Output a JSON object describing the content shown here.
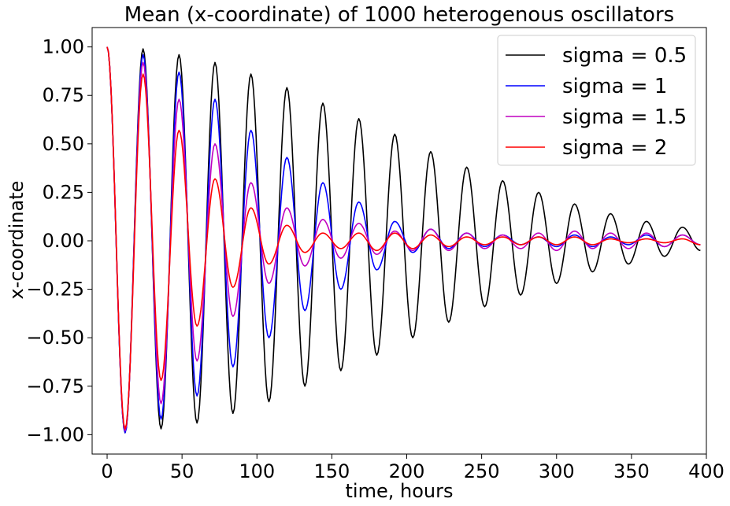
{
  "chart_data": {
    "type": "line",
    "title": "Mean (x-coordinate) of 1000 heterogenous oscillators",
    "xlabel": "time, hours",
    "ylabel": "x-coordinate",
    "xlim": [
      -10,
      400
    ],
    "ylim": [
      -1.1,
      1.1
    ],
    "xticks": [
      0,
      50,
      100,
      150,
      200,
      250,
      300,
      350,
      400
    ],
    "xtick_labels": [
      "0",
      "50",
      "100",
      "150",
      "200",
      "250",
      "300",
      "350",
      "400"
    ],
    "yticks": [
      1.0,
      0.75,
      0.5,
      0.25,
      0.0,
      -0.25,
      -0.5,
      -0.75,
      -1.0
    ],
    "ytick_labels": [
      "1.00",
      "0.75",
      "0.50",
      "0.25",
      "0.00",
      "−0.25",
      "−0.50",
      "−0.75",
      "−1.00"
    ],
    "grid": false,
    "legend_position": "top-right",
    "series": [
      {
        "name": "sigma = 0.5",
        "color": "#000000",
        "x": [
          0,
          12,
          24,
          36,
          48,
          60,
          72,
          84,
          96,
          108,
          120,
          132,
          144,
          156,
          168,
          180,
          192,
          204,
          216,
          228,
          240,
          252,
          264,
          276,
          288,
          300,
          312,
          324,
          336,
          348,
          360,
          372,
          384,
          396
        ],
        "y": [
          1.0,
          -0.99,
          0.99,
          -0.97,
          0.96,
          -0.94,
          0.92,
          -0.89,
          0.86,
          -0.83,
          0.79,
          -0.75,
          0.71,
          -0.67,
          0.63,
          -0.59,
          0.55,
          -0.5,
          0.46,
          -0.42,
          0.38,
          -0.34,
          0.31,
          -0.28,
          0.25,
          -0.22,
          0.19,
          -0.16,
          0.14,
          -0.12,
          0.1,
          -0.08,
          0.07,
          -0.05
        ]
      },
      {
        "name": "sigma = 1",
        "color": "#0000ff",
        "x": [
          0,
          12,
          24,
          36,
          48,
          60,
          72,
          84,
          96,
          108,
          120,
          132,
          144,
          156,
          168,
          180,
          192,
          204,
          216,
          228,
          240,
          252,
          264,
          276,
          288,
          300,
          312,
          324,
          336,
          348,
          360,
          372,
          384,
          396
        ],
        "y": [
          1.0,
          -0.99,
          0.96,
          -0.92,
          0.87,
          -0.8,
          0.73,
          -0.65,
          0.57,
          -0.5,
          0.43,
          -0.36,
          0.3,
          -0.25,
          0.2,
          -0.15,
          0.1,
          -0.06,
          0.06,
          -0.04,
          0.04,
          -0.03,
          0.03,
          -0.02,
          0.02,
          -0.03,
          0.03,
          -0.03,
          0.02,
          -0.02,
          0.03,
          -0.03,
          0.03,
          -0.02
        ]
      },
      {
        "name": "sigma = 1.5",
        "color": "#c000c0",
        "x": [
          0,
          12,
          24,
          36,
          48,
          60,
          72,
          84,
          96,
          108,
          120,
          132,
          144,
          156,
          168,
          180,
          192,
          204,
          216,
          228,
          240,
          252,
          264,
          276,
          288,
          300,
          312,
          324,
          336,
          348,
          360,
          372,
          384,
          396
        ],
        "y": [
          1.0,
          -0.98,
          0.92,
          -0.84,
          0.73,
          -0.62,
          0.5,
          -0.39,
          0.3,
          -0.22,
          0.17,
          -0.13,
          0.11,
          -0.09,
          0.09,
          -0.07,
          0.05,
          -0.05,
          0.06,
          -0.05,
          0.04,
          -0.04,
          0.03,
          -0.04,
          0.04,
          -0.05,
          0.05,
          -0.04,
          0.04,
          -0.04,
          0.04,
          -0.03,
          0.03,
          -0.02
        ]
      },
      {
        "name": "sigma = 2",
        "color": "#ff0000",
        "x": [
          0,
          12,
          24,
          36,
          48,
          60,
          72,
          84,
          96,
          108,
          120,
          132,
          144,
          156,
          168,
          180,
          192,
          204,
          216,
          228,
          240,
          252,
          264,
          276,
          288,
          300,
          312,
          324,
          336,
          348,
          360,
          372,
          384,
          396
        ],
        "y": [
          1.0,
          -0.97,
          0.86,
          -0.72,
          0.57,
          -0.44,
          0.32,
          -0.24,
          0.17,
          -0.12,
          0.08,
          -0.06,
          0.04,
          -0.04,
          0.04,
          -0.05,
          0.04,
          -0.04,
          0.03,
          -0.03,
          0.02,
          -0.02,
          0.02,
          -0.02,
          0.02,
          -0.02,
          0.02,
          -0.02,
          0.01,
          -0.01,
          0.01,
          -0.01,
          0.01,
          -0.02
        ]
      }
    ]
  }
}
